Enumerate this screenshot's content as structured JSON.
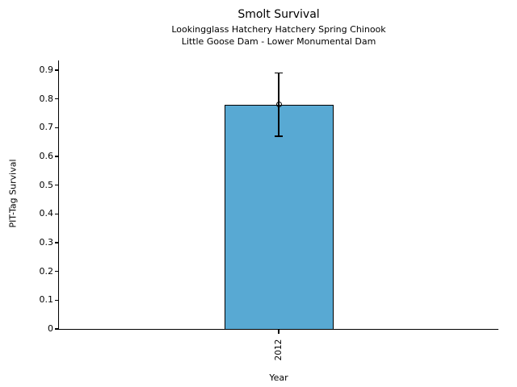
{
  "chart_data": {
    "type": "bar",
    "title": "Smolt Survival",
    "subtitle": [
      "Lookingglass Hatchery Hatchery Spring Chinook",
      "Little Goose Dam - Lower Monumental Dam"
    ],
    "xlabel": "Year",
    "ylabel": "PIT-Tag Survival",
    "categories": [
      "2012"
    ],
    "values": [
      0.78
    ],
    "error_low": [
      0.67
    ],
    "error_high": [
      0.89
    ],
    "ylim": [
      0,
      0.935
    ],
    "yticks": [
      0,
      0.1,
      0.2,
      0.3,
      0.4,
      0.5,
      0.6,
      0.7,
      0.8,
      0.9
    ],
    "ytick_labels": [
      "0",
      "0.1",
      "0.2",
      "0.3",
      "0.4",
      "0.5",
      "0.6",
      "0.7",
      "0.8",
      "0.9"
    ],
    "bar_color": "#58A9D3",
    "edge_color": "#000000",
    "grid": false,
    "legend": "none"
  }
}
